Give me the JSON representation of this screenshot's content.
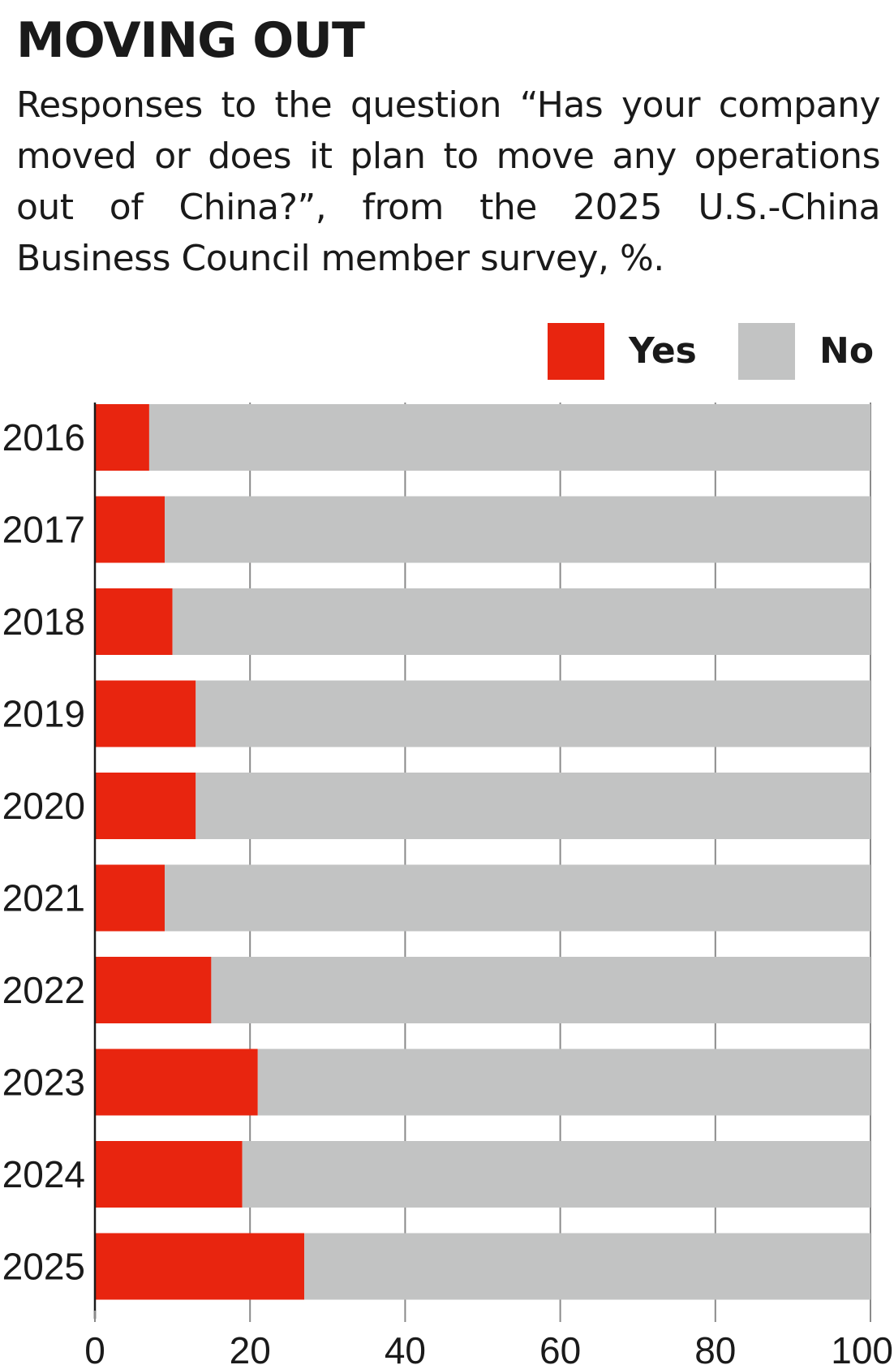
{
  "chart_data": {
    "type": "bar",
    "stacked": true,
    "orientation": "horizontal",
    "title": "MOVING OUT",
    "subtitle": "Responses to the question “Has your company moved or does it plan to move any operations out of China?”, from the 2025 U.S.-China Business Council member survey, %.",
    "categories": [
      "2016",
      "2017",
      "2018",
      "2019",
      "2020",
      "2021",
      "2022",
      "2023",
      "2024",
      "2025"
    ],
    "series": [
      {
        "name": "Yes",
        "color": "#e8250f",
        "values": [
          7,
          9,
          10,
          13,
          13,
          9,
          15,
          21,
          19,
          27
        ]
      },
      {
        "name": "No",
        "color": "#c2c3c3",
        "values": [
          93,
          91,
          90,
          87,
          87,
          91,
          85,
          79,
          81,
          73
        ]
      }
    ],
    "xlim": [
      0,
      100
    ],
    "xticks": [
      0,
      20,
      40,
      60,
      80,
      100
    ],
    "xtick_labels": [
      "0",
      "20",
      "40",
      "60",
      "80",
      "100"
    ],
    "xlabel": "",
    "ylabel": "",
    "grid": true,
    "legend_position": "top-right"
  },
  "colors": {
    "yes": "#e8250f",
    "no": "#c2c3c3",
    "grid": "#8a8a8a",
    "text": "#1a1a1a"
  }
}
